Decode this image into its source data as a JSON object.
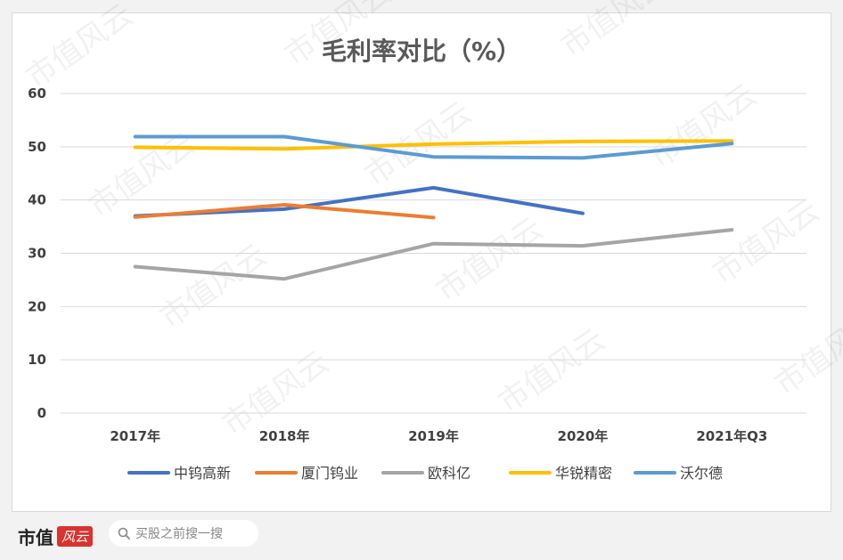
{
  "chart_data": {
    "type": "line",
    "title": "毛利率对比（%）",
    "categories": [
      "2017年",
      "2018年",
      "2019年",
      "2020年",
      "2021年Q3"
    ],
    "ylim": [
      0,
      60
    ],
    "yticks": [
      0,
      10,
      20,
      30,
      40,
      50,
      60
    ],
    "grid": true,
    "legend_position": "bottom",
    "series": [
      {
        "name": "中钨高新",
        "color": "#4472c4",
        "values": [
          37.0,
          38.3,
          42.3,
          37.5,
          null
        ]
      },
      {
        "name": "厦门钨业",
        "color": "#ed7d31",
        "values": [
          36.8,
          39.1,
          36.7,
          null,
          null
        ]
      },
      {
        "name": "欧科亿",
        "color": "#a5a5a5",
        "values": [
          27.5,
          25.2,
          31.8,
          31.4,
          34.4
        ]
      },
      {
        "name": "华锐精密",
        "color": "#ffc000",
        "values": [
          49.9,
          49.6,
          50.5,
          51.0,
          51.1
        ]
      },
      {
        "name": "沃尔德",
        "color": "#5b9bd5",
        "values": [
          51.9,
          51.9,
          48.1,
          47.9,
          50.6
        ]
      }
    ]
  },
  "watermark": "市值风云",
  "footer": {
    "brand": "市值",
    "brand_badge": "风云",
    "search_text": "买股之前搜一搜"
  }
}
